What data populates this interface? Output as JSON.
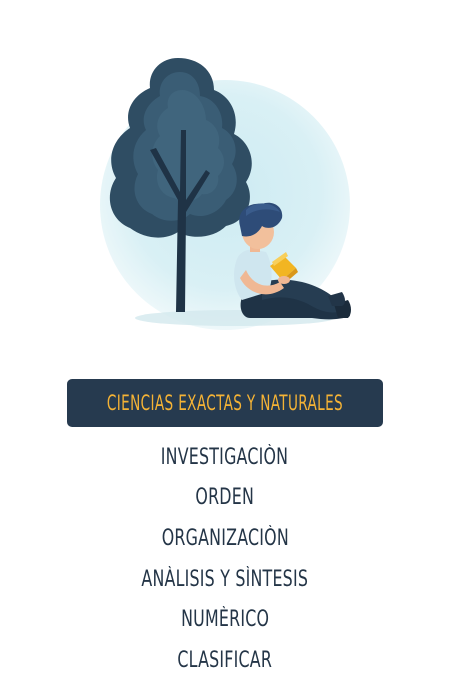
{
  "banner": {
    "title": "CIENCIAS EXACTAS Y NATURALES"
  },
  "traits": [
    "INVESTIGACIÒN",
    "ORDEN",
    "ORGANIZACIÒN",
    "ANÀLISIS Y SÌNTESIS",
    "NUMÈRICO",
    "CLASIFICAR"
  ],
  "colors": {
    "banner_background": "#263a4f",
    "banner_text": "#f5b335",
    "trait_text": "#243547",
    "backdrop_circle": "#d7eef4",
    "tree_foliage": "#2f4d63",
    "book": "#f2b522"
  },
  "illustration": {
    "icons": [
      "tree-icon",
      "person-reading-icon",
      "book-icon"
    ]
  }
}
